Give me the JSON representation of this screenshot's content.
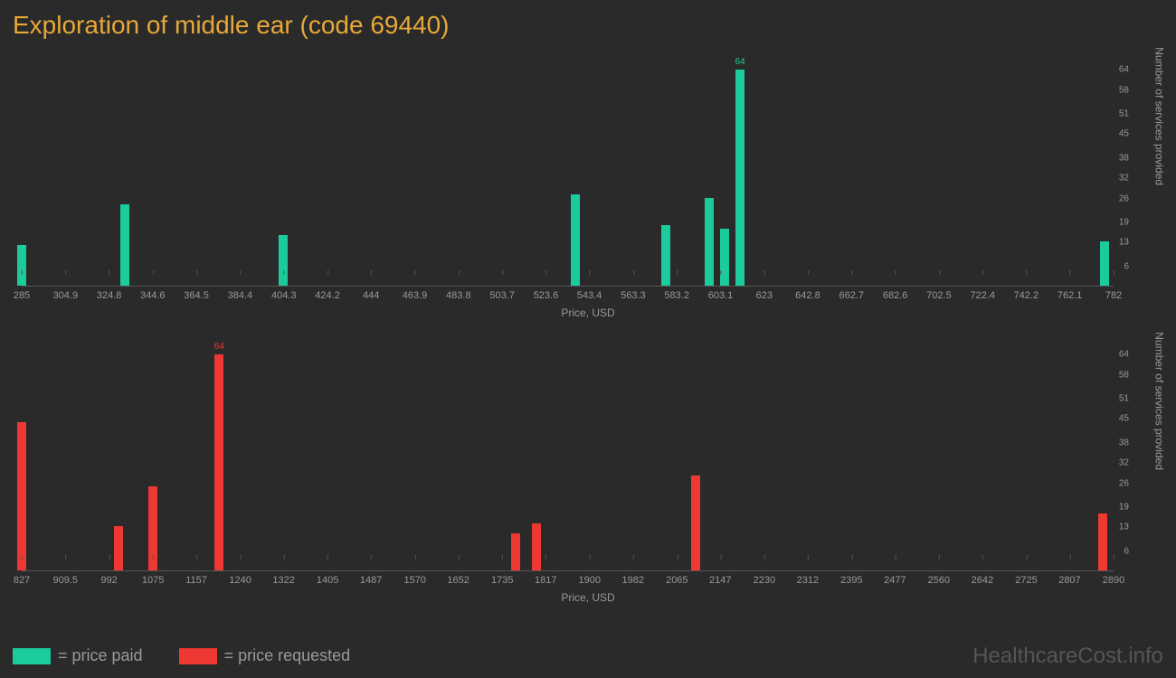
{
  "title": "Exploration of middle ear (code 69440)",
  "watermark": "HealthcareCost.info",
  "legend": {
    "paid": "= price paid",
    "requested": "= price requested"
  },
  "axis_labels": {
    "x": "Price, USD",
    "y": "Number of services provided"
  },
  "colors": {
    "background": "#2a2a2a",
    "title": "#e8a838",
    "paid": "#1bcb9b",
    "requested": "#ed3833",
    "text_muted": "#999",
    "axis_line": "#555",
    "watermark": "#555"
  },
  "chart_top": {
    "type": "bar",
    "xlim": [
      285,
      782
    ],
    "ylim": [
      0,
      68
    ],
    "yticks": [
      6,
      13,
      19,
      26,
      32,
      38,
      45,
      51,
      58,
      64
    ],
    "xticks": [
      285,
      304.9,
      324.8,
      344.6,
      364.5,
      384.4,
      404.3,
      424.2,
      444,
      463.9,
      483.8,
      503.7,
      523.6,
      543.4,
      563.3,
      583.2,
      603.1,
      623,
      642.8,
      662.7,
      682.6,
      702.5,
      722.4,
      742.2,
      762.1,
      782
    ],
    "bars": [
      {
        "x": 285,
        "y": 12
      },
      {
        "x": 332,
        "y": 24
      },
      {
        "x": 404,
        "y": 15
      },
      {
        "x": 537,
        "y": 27
      },
      {
        "x": 578,
        "y": 18
      },
      {
        "x": 598,
        "y": 26
      },
      {
        "x": 605,
        "y": 17
      },
      {
        "x": 612,
        "y": 64,
        "label": "64"
      },
      {
        "x": 778,
        "y": 13
      }
    ]
  },
  "chart_bottom": {
    "type": "bar",
    "xlim": [
      827,
      2890
    ],
    "ylim": [
      0,
      68
    ],
    "yticks": [
      6,
      13,
      19,
      26,
      32,
      38,
      45,
      51,
      58,
      64
    ],
    "xticks": [
      827,
      909.5,
      992,
      1075,
      1157,
      1240,
      1322,
      1405,
      1487,
      1570,
      1652,
      1735,
      1817,
      1900,
      1982,
      2065,
      2147,
      2230,
      2312,
      2395,
      2477,
      2560,
      2642,
      2725,
      2807,
      2890
    ],
    "bars": [
      {
        "x": 827,
        "y": 44
      },
      {
        "x": 1010,
        "y": 13
      },
      {
        "x": 1075,
        "y": 25
      },
      {
        "x": 1200,
        "y": 64,
        "label": "64"
      },
      {
        "x": 1760,
        "y": 11
      },
      {
        "x": 1800,
        "y": 14
      },
      {
        "x": 2100,
        "y": 28
      },
      {
        "x": 2870,
        "y": 17
      }
    ]
  }
}
